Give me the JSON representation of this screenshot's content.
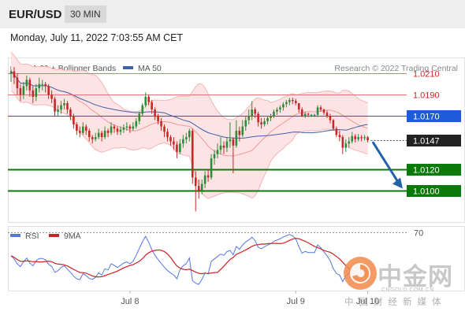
{
  "header": {
    "pair": "EUR/USD",
    "interval": "30 MIN",
    "datetime": "Monday, July 11, 2022 7:03:55 AM CET"
  },
  "legend": {
    "bollinger": "MA 20 + Bollinger Bands",
    "ma50": "MA 50",
    "rsi": "RSI",
    "rsi_ma": "9MA",
    "credit": "Research © 2022 Trading Central"
  },
  "watermark": {
    "main": "中金网",
    "sub": "CNGOLD.COM.CN",
    "cn": "中国财经新媒体"
  },
  "colors": {
    "up": "#2e8b3c",
    "down": "#c62828",
    "resistance": "#e57373",
    "pivot": "#1e5bd8",
    "support": "#0a7a0a",
    "current": "#222222",
    "arrow": "#2462a8",
    "band": "#fde3e3",
    "band_line": "#f5b5b5",
    "ma50": "#3b63a8",
    "rsi": "#5577dd",
    "rsi_ma": "#cc2222"
  },
  "chart_data": [
    {
      "type": "candlestick",
      "ylim": [
        1.007,
        1.0225
      ],
      "x_tick_labels": [
        {
          "label": "Jul 8",
          "index": 38
        },
        {
          "label": "Jul 9",
          "index": 91
        },
        {
          "label": "Jul 10",
          "index": 114
        }
      ],
      "levels": [
        {
          "label": "1.0210",
          "value": 1.021,
          "kind": "resistance"
        },
        {
          "label": "1.0190",
          "value": 1.019,
          "kind": "resistance"
        },
        {
          "label": "1.0170",
          "value": 1.017,
          "kind": "pivot"
        },
        {
          "label": "1.0147",
          "value": 1.0147,
          "kind": "current"
        },
        {
          "label": "1.0120",
          "value": 1.012,
          "kind": "support"
        },
        {
          "label": "1.0100",
          "value": 1.01,
          "kind": "support"
        }
      ],
      "forecast": {
        "from": 1.0147,
        "to": 1.01
      },
      "close": [
        1.0212,
        1.0206,
        1.0196,
        1.019,
        1.0198,
        1.0204,
        1.0194,
        1.0188,
        1.0196,
        1.02,
        1.02,
        1.0198,
        1.019,
        1.0186,
        1.0174,
        1.0176,
        1.018,
        1.0182,
        1.0176,
        1.017,
        1.0162,
        1.0156,
        1.0154,
        1.016,
        1.0156,
        1.015,
        1.0148,
        1.015,
        1.0154,
        1.015,
        1.0156,
        1.0154,
        1.016,
        1.0158,
        1.0155,
        1.0157,
        1.0159,
        1.016,
        1.0158,
        1.016,
        1.0165,
        1.0172,
        1.018,
        1.0188,
        1.0183,
        1.0176,
        1.017,
        1.0165,
        1.016,
        1.0155,
        1.015,
        1.0146,
        1.0143,
        1.0136,
        1.0144,
        1.0148,
        1.015,
        1.0156,
        1.0112,
        1.0104,
        1.01,
        1.0106,
        1.0114,
        1.0112,
        1.013,
        1.0134,
        1.0138,
        1.0142,
        1.014,
        1.0146,
        1.0148,
        1.0142,
        1.0156,
        1.0152,
        1.016,
        1.0166,
        1.017,
        1.0176,
        1.0172,
        1.0164,
        1.0162,
        1.0165,
        1.0168,
        1.017,
        1.0174,
        1.0176,
        1.0178,
        1.0181,
        1.0183,
        1.0185,
        1.0184,
        1.0182,
        1.0176,
        1.017,
        1.0172,
        1.0171,
        1.0171,
        1.0171,
        1.0178,
        1.0176,
        1.0173,
        1.017,
        1.0166,
        1.0158,
        1.0152,
        1.015,
        1.014,
        1.0144,
        1.0146,
        1.0151,
        1.0148,
        1.015,
        1.0149,
        1.015,
        1.0147
      ],
      "candles": [
        [
          1.021,
          1.0214,
          1.0202,
          1.0212
        ],
        [
          1.0212,
          1.0216,
          1.02,
          1.0206
        ],
        [
          1.0206,
          1.021,
          1.019,
          1.0196
        ],
        [
          1.0196,
          1.02,
          1.0184,
          1.019
        ],
        [
          1.019,
          1.0202,
          1.0186,
          1.0198
        ],
        [
          1.0198,
          1.0208,
          1.0194,
          1.0204
        ],
        [
          1.0204,
          1.0206,
          1.0188,
          1.0194
        ],
        [
          1.0194,
          1.0198,
          1.0182,
          1.0188
        ],
        [
          1.0188,
          1.02,
          1.0184,
          1.0196
        ],
        [
          1.0196,
          1.0206,
          1.0192,
          1.02
        ],
        [
          1.02,
          1.0204,
          1.0194,
          1.02
        ],
        [
          1.02,
          1.0202,
          1.0192,
          1.0198
        ],
        [
          1.0198,
          1.02,
          1.0186,
          1.019
        ],
        [
          1.019,
          1.0194,
          1.0182,
          1.0186
        ],
        [
          1.0186,
          1.0188,
          1.017,
          1.0174
        ],
        [
          1.0174,
          1.018,
          1.017,
          1.0176
        ],
        [
          1.0176,
          1.0184,
          1.0172,
          1.018
        ],
        [
          1.018,
          1.0186,
          1.0176,
          1.0182
        ],
        [
          1.0182,
          1.0184,
          1.0172,
          1.0176
        ],
        [
          1.0176,
          1.0178,
          1.0166,
          1.017
        ],
        [
          1.017,
          1.0172,
          1.0158,
          1.0162
        ],
        [
          1.0162,
          1.0164,
          1.0152,
          1.0156
        ],
        [
          1.0156,
          1.016,
          1.015,
          1.0154
        ],
        [
          1.0154,
          1.0164,
          1.0152,
          1.016
        ],
        [
          1.016,
          1.0162,
          1.0152,
          1.0156
        ],
        [
          1.0156,
          1.0158,
          1.0146,
          1.015
        ],
        [
          1.015,
          1.0152,
          1.0144,
          1.0148
        ],
        [
          1.0148,
          1.0154,
          1.0146,
          1.015
        ],
        [
          1.015,
          1.0158,
          1.0148,
          1.0154
        ],
        [
          1.0154,
          1.0156,
          1.0146,
          1.015
        ],
        [
          1.015,
          1.016,
          1.0148,
          1.0156
        ],
        [
          1.0156,
          1.0158,
          1.015,
          1.0154
        ],
        [
          1.0154,
          1.0164,
          1.0152,
          1.016
        ],
        [
          1.016,
          1.0162,
          1.0154,
          1.0158
        ],
        [
          1.0158,
          1.016,
          1.0152,
          1.0155
        ],
        [
          1.0155,
          1.016,
          1.0152,
          1.0157
        ],
        [
          1.0157,
          1.0162,
          1.0154,
          1.0159
        ],
        [
          1.0159,
          1.0164,
          1.0156,
          1.016
        ],
        [
          1.016,
          1.0162,
          1.0154,
          1.0158
        ],
        [
          1.0158,
          1.0164,
          1.0156,
          1.016
        ],
        [
          1.016,
          1.0168,
          1.0158,
          1.0165
        ],
        [
          1.0165,
          1.0174,
          1.0162,
          1.0172
        ],
        [
          1.0172,
          1.0182,
          1.017,
          1.018
        ],
        [
          1.018,
          1.0192,
          1.0178,
          1.0188
        ],
        [
          1.0188,
          1.019,
          1.018,
          1.0183
        ],
        [
          1.0183,
          1.0185,
          1.0172,
          1.0176
        ],
        [
          1.0176,
          1.0178,
          1.0166,
          1.017
        ],
        [
          1.017,
          1.0172,
          1.0162,
          1.0165
        ],
        [
          1.0165,
          1.0168,
          1.0156,
          1.016
        ],
        [
          1.016,
          1.0162,
          1.015,
          1.0155
        ],
        [
          1.0155,
          1.0158,
          1.0146,
          1.015
        ],
        [
          1.015,
          1.0152,
          1.0142,
          1.0146
        ],
        [
          1.0146,
          1.015,
          1.0138,
          1.0143
        ],
        [
          1.0143,
          1.0146,
          1.013,
          1.0136
        ],
        [
          1.0136,
          1.0148,
          1.0134,
          1.0144
        ],
        [
          1.0144,
          1.0152,
          1.014,
          1.0148
        ],
        [
          1.0148,
          1.0154,
          1.0144,
          1.015
        ],
        [
          1.015,
          1.0158,
          1.0146,
          1.0156
        ],
        [
          1.0156,
          1.0158,
          1.0106,
          1.0112
        ],
        [
          1.0112,
          1.0118,
          1.008,
          1.0104
        ],
        [
          1.0104,
          1.011,
          1.0092,
          1.01
        ],
        [
          1.01,
          1.011,
          1.0096,
          1.0106
        ],
        [
          1.0106,
          1.0118,
          1.0102,
          1.0114
        ],
        [
          1.0114,
          1.012,
          1.0108,
          1.0112
        ],
        [
          1.0112,
          1.0134,
          1.011,
          1.013
        ],
        [
          1.013,
          1.0138,
          1.0124,
          1.0134
        ],
        [
          1.0134,
          1.0144,
          1.013,
          1.0138
        ],
        [
          1.0138,
          1.015,
          1.0134,
          1.0142
        ],
        [
          1.0142,
          1.0146,
          1.0134,
          1.014
        ],
        [
          1.014,
          1.015,
          1.0136,
          1.0146
        ],
        [
          1.0146,
          1.0164,
          1.014,
          1.0148
        ],
        [
          1.0148,
          1.015,
          1.0116,
          1.0142
        ],
        [
          1.0142,
          1.0166,
          1.014,
          1.0156
        ],
        [
          1.0156,
          1.016,
          1.0146,
          1.0152
        ],
        [
          1.0152,
          1.0166,
          1.015,
          1.016
        ],
        [
          1.016,
          1.017,
          1.0156,
          1.0166
        ],
        [
          1.0166,
          1.0176,
          1.0162,
          1.017
        ],
        [
          1.017,
          1.0184,
          1.0166,
          1.0176
        ],
        [
          1.0176,
          1.0178,
          1.0168,
          1.0172
        ],
        [
          1.0172,
          1.0174,
          1.016,
          1.0164
        ],
        [
          1.0164,
          1.0168,
          1.0158,
          1.0162
        ],
        [
          1.0162,
          1.0168,
          1.016,
          1.0165
        ],
        [
          1.0165,
          1.017,
          1.0162,
          1.0168
        ],
        [
          1.0168,
          1.0172,
          1.0165,
          1.017
        ],
        [
          1.017,
          1.0176,
          1.0168,
          1.0174
        ],
        [
          1.0174,
          1.0178,
          1.0171,
          1.0176
        ],
        [
          1.0176,
          1.018,
          1.0173,
          1.0178
        ],
        [
          1.0178,
          1.0183,
          1.0175,
          1.0181
        ],
        [
          1.0181,
          1.0185,
          1.0178,
          1.0183
        ],
        [
          1.0183,
          1.0187,
          1.018,
          1.0185
        ],
        [
          1.0185,
          1.0187,
          1.0181,
          1.0184
        ],
        [
          1.0184,
          1.0186,
          1.018,
          1.0182
        ],
        [
          1.0182,
          1.0182,
          1.0173,
          1.0176
        ],
        [
          1.0176,
          1.0178,
          1.0169,
          1.017
        ],
        [
          1.017,
          1.0174,
          1.0168,
          1.0172
        ],
        [
          1.0172,
          1.0173,
          1.0169,
          1.0171
        ],
        [
          1.0171,
          1.0172,
          1.0169,
          1.0171
        ],
        [
          1.0171,
          1.0172,
          1.0169,
          1.0171
        ],
        [
          1.0171,
          1.018,
          1.0169,
          1.0178
        ],
        [
          1.0178,
          1.018,
          1.0174,
          1.0176
        ],
        [
          1.0176,
          1.0177,
          1.0171,
          1.0173
        ],
        [
          1.0173,
          1.0175,
          1.0168,
          1.017
        ],
        [
          1.017,
          1.0172,
          1.0163,
          1.0166
        ],
        [
          1.0166,
          1.0167,
          1.0156,
          1.0158
        ],
        [
          1.0158,
          1.016,
          1.015,
          1.0152
        ],
        [
          1.0152,
          1.0156,
          1.0146,
          1.015
        ],
        [
          1.015,
          1.0152,
          1.0134,
          1.014
        ],
        [
          1.014,
          1.0148,
          1.0136,
          1.0144
        ],
        [
          1.0144,
          1.015,
          1.014,
          1.0146
        ],
        [
          1.0146,
          1.0155,
          1.0144,
          1.0151
        ],
        [
          1.0151,
          1.0153,
          1.0145,
          1.0148
        ],
        [
          1.0148,
          1.0153,
          1.0146,
          1.015
        ],
        [
          1.015,
          1.0152,
          1.0146,
          1.0149
        ],
        [
          1.0149,
          1.0152,
          1.0147,
          1.015
        ],
        [
          1.015,
          1.0151,
          1.0145,
          1.0147
        ]
      ]
    },
    {
      "type": "line",
      "name": "RSI",
      "ylim": [
        20,
        75
      ],
      "levels": [
        {
          "label": "70",
          "value": 70
        }
      ]
    }
  ]
}
